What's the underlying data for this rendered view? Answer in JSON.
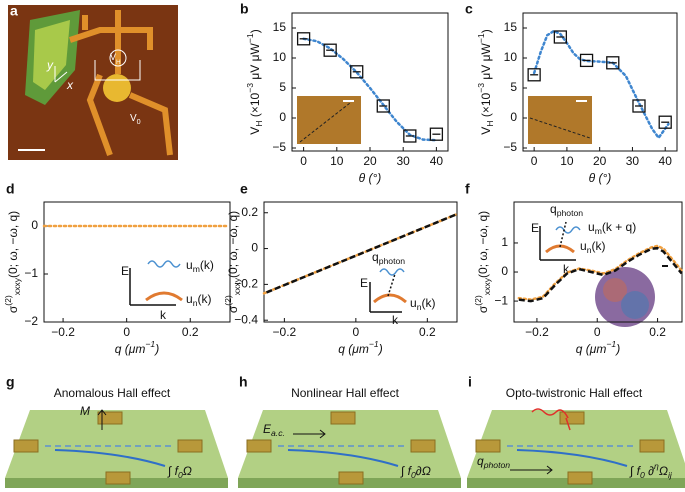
{
  "panel_a": {
    "label": "a",
    "texts": [
      "y",
      "x",
      [
        "V",
        {
          "sub": "H"
        }
      ],
      [
        "V",
        {
          "sub": "0"
        }
      ]
    ]
  },
  "chart_data": [
    {
      "panel": "b",
      "type": "scatter",
      "xlabel": "θ (°)",
      "ylabel": [
        "V",
        {
          "sub": "H"
        },
        " (×10",
        {
          "sup": "−3"
        },
        " μV μW",
        {
          "sup": "−1"
        },
        ")"
      ],
      "xlim": [
        -3.5,
        43.5
      ],
      "ylim": [
        -5.5,
        17.5
      ],
      "xticks": [
        0,
        10,
        20,
        30,
        40
      ],
      "yticks": [
        {
          "value": -5,
          "label": "−5"
        },
        0,
        5,
        10,
        15
      ],
      "series": [
        {
          "mark": "line",
          "style": "dotted",
          "color": "#3f86cf",
          "x": [
            0,
            4,
            8,
            12,
            16,
            20,
            24,
            28,
            32,
            36,
            40
          ],
          "values": [
            13.2,
            12.8,
            11.6,
            9.8,
            7.6,
            5.0,
            2.2,
            -0.6,
            -2.8,
            -3.6,
            -3.7
          ]
        },
        {
          "mark": "square",
          "color": "#111111",
          "x": [
            0,
            8,
            16,
            24,
            32,
            40
          ],
          "values": [
            13.2,
            11.3,
            7.7,
            2.0,
            -3.0,
            -2.7
          ]
        }
      ]
    },
    {
      "panel": "c",
      "type": "scatter",
      "xlabel": "θ (°)",
      "ylabel": [
        "V",
        {
          "sub": "H"
        },
        " (×10",
        {
          "sup": "−3"
        },
        " μV μW",
        {
          "sup": "−1"
        },
        ")"
      ],
      "xlim": [
        -3.4,
        43.6
      ],
      "ylim": [
        -5.5,
        17.5
      ],
      "xticks": [
        0,
        10,
        20,
        30,
        40
      ],
      "yticks": [
        {
          "value": -5,
          "label": "−5"
        },
        0,
        5,
        10,
        15
      ],
      "series": [
        {
          "mark": "line",
          "style": "dotted",
          "color": "#3f86cf",
          "x": [
            0,
            2,
            4,
            6,
            8,
            10,
            12,
            14,
            16,
            20,
            24,
            28,
            32,
            36,
            38,
            41
          ],
          "values": [
            7.5,
            11.0,
            13.8,
            14.5,
            14.0,
            12.5,
            10.8,
            9.8,
            9.5,
            9.4,
            9.2,
            7.0,
            2.5,
            -1.8,
            -3.3,
            -1.0
          ]
        },
        {
          "mark": "square",
          "color": "#111111",
          "x": [
            0,
            8,
            16,
            24,
            32,
            40
          ],
          "values": [
            7.2,
            13.5,
            9.6,
            9.2,
            2.0,
            -0.7
          ]
        }
      ]
    },
    {
      "panel": "d",
      "type": "line",
      "xlabel": [
        "q",
        " (μm",
        {
          "sup": "−1"
        },
        ")"
      ],
      "ylabel": [
        "σ",
        {
          "sup": "(2)"
        },
        {
          "sub": "xxxy"
        },
        "(0; ω, −ω, q)"
      ],
      "xlim": [
        -0.26,
        0.325
      ],
      "ylim": [
        -2,
        0.5
      ],
      "xticks": [
        {
          "value": -0.2,
          "label": "−0.2"
        },
        0,
        0.2
      ],
      "yticks": [
        {
          "value": -2,
          "label": "−2"
        },
        {
          "value": -1,
          "label": "−1"
        },
        0
      ],
      "annotations": [
        "E",
        "k",
        [
          "u",
          {
            "sub": "m"
          },
          "(k)"
        ],
        [
          "u",
          {
            "sub": "n"
          },
          "(k)"
        ]
      ],
      "series": [
        {
          "mark": "line",
          "style": "dotted",
          "color": "#f0a040",
          "x": [
            -0.26,
            0.32
          ],
          "values": [
            0,
            0
          ]
        }
      ]
    },
    {
      "panel": "e",
      "type": "line",
      "xlabel": [
        "q",
        " (μm",
        {
          "sup": "−1"
        },
        ")"
      ],
      "ylabel": [
        "σ",
        {
          "sup": "(2)"
        },
        {
          "sub": "xxxy"
        },
        "(0; ω, −ω, q)"
      ],
      "xlim": [
        -0.257,
        0.283
      ],
      "ylim": [
        -0.41,
        0.26
      ],
      "xticks": [
        {
          "value": -0.2,
          "label": "−0.2"
        },
        0,
        0.2
      ],
      "yticks": [
        {
          "value": -0.4,
          "label": "−0.4"
        },
        {
          "value": -0.2,
          "label": "−0.2"
        },
        0,
        0.2
      ],
      "annotations": [
        "E",
        "k",
        [
          "q",
          {
            "sub": "photon"
          }
        ],
        [
          "u",
          {
            "sub": "n"
          },
          "(k)"
        ]
      ],
      "series": [
        {
          "mark": "line",
          "style": "dotted",
          "color": "#f0a040",
          "x": [
            -0.257,
            0.28
          ],
          "values": [
            -0.25,
            0.19
          ]
        },
        {
          "mark": "line",
          "style": "dashed",
          "color": "#111111",
          "x": [
            -0.25,
            0.28
          ],
          "values": [
            -0.245,
            0.19
          ]
        }
      ]
    },
    {
      "panel": "f",
      "type": "line",
      "xlabel": [
        "q",
        " (μm",
        {
          "sup": "−1"
        },
        ")"
      ],
      "ylabel": [
        "σ",
        {
          "sup": "(2)"
        },
        {
          "sub": "xxxy"
        },
        "(0; ω, −ω, q)"
      ],
      "xlim": [
        -0.276,
        0.281
      ],
      "ylim": [
        -1.72,
        2.41
      ],
      "xticks": [
        {
          "value": -0.2,
          "label": "−0.2"
        },
        0,
        0.2
      ],
      "yticks": [
        {
          "value": -1,
          "label": "−1"
        },
        0,
        1
      ],
      "annotations": [
        "E",
        "k",
        [
          "q",
          {
            "sub": "photon"
          }
        ],
        [
          "u",
          {
            "sub": "m"
          },
          "(k + q)"
        ],
        [
          "u",
          {
            "sub": "n"
          },
          "(k)"
        ]
      ],
      "series": [
        {
          "mark": "line",
          "style": "dotted",
          "color": "#f0a040",
          "x": [
            -0.26,
            -0.22,
            -0.18,
            -0.14,
            -0.1,
            -0.06,
            -0.02,
            0.02,
            0.06,
            0.1,
            0.14,
            0.18,
            0.2,
            0.22,
            0.26,
            0.28
          ],
          "values": [
            -0.9,
            -0.95,
            -0.85,
            -0.4,
            -0.02,
            0.12,
            0.05,
            -0.05,
            0.1,
            0.4,
            0.65,
            0.85,
            0.9,
            0.8,
            0.3,
            0.05
          ]
        },
        {
          "mark": "line",
          "style": "dashed",
          "color": "#111111",
          "x": [
            -0.26,
            -0.22,
            -0.18,
            -0.14,
            -0.1,
            -0.06,
            -0.02,
            0.02,
            0.06,
            0.1,
            0.14,
            0.18,
            0.2,
            0.22,
            0.26,
            0.28
          ],
          "values": [
            -0.95,
            -1.0,
            -0.9,
            -0.45,
            -0.05,
            0.1,
            0.0,
            -0.1,
            0.05,
            0.35,
            0.6,
            0.8,
            0.82,
            0.7,
            0.2,
            -0.05
          ]
        }
      ]
    }
  ],
  "panels_bottom": [
    {
      "label": "g",
      "title": "Anomalous Hall effect",
      "texts": [
        "M",
        [
          "∫ f",
          {
            "sub": "0"
          },
          "Ω"
        ]
      ]
    },
    {
      "label": "h",
      "title": "Nonlinear Hall effect",
      "texts": [
        [
          "E",
          {
            "sub": "a.c."
          }
        ],
        [
          "∫ f",
          {
            "sub": "0"
          },
          "∂Ω"
        ]
      ]
    },
    {
      "label": "i",
      "title": "Opto-twistronic Hall effect",
      "texts": [
        [
          "q",
          {
            "sub": "photon"
          }
        ],
        [
          "∫ f",
          {
            "sub": "0"
          },
          " ∂",
          {
            "sup": "η"
          },
          "Ω",
          {
            "sub": "ij"
          }
        ]
      ]
    }
  ]
}
